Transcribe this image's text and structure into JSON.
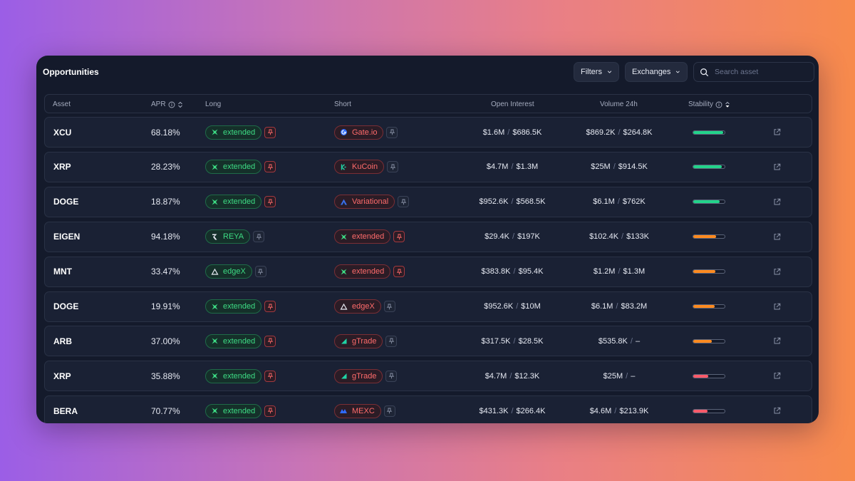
{
  "header": {
    "title": "Opportunities",
    "filters_label": "Filters",
    "exchanges_label": "Exchanges",
    "search_placeholder": "Search asset"
  },
  "columns": {
    "asset": "Asset",
    "apr": "APR",
    "long": "Long",
    "short": "Short",
    "open_interest": "Open Interest",
    "volume": "Volume 24h",
    "stability": "Stability"
  },
  "colors": {
    "long_green": "#3ddc84",
    "short_red": "#ff6b6b",
    "stability_high": "#22d38a",
    "stability_mid": "#ff8a1f",
    "stability_low": "#ff5a6a"
  },
  "rows": [
    {
      "asset": "XCU",
      "apr": "68.18%",
      "long": {
        "name": "extended",
        "icon": "extended-icon",
        "pinned": true
      },
      "short": {
        "name": "Gate.io",
        "icon": "gateio-icon",
        "pinned": false
      },
      "oi_long": "$1.6M",
      "oi_short": "$686.5K",
      "vol_long": "$869.2K",
      "vol_short": "$264.8K",
      "stability": 0.95,
      "stability_level": "high"
    },
    {
      "asset": "XRP",
      "apr": "28.23%",
      "long": {
        "name": "extended",
        "icon": "extended-icon",
        "pinned": true
      },
      "short": {
        "name": "KuCoin",
        "icon": "kucoin-icon",
        "pinned": false
      },
      "oi_long": "$4.7M",
      "oi_short": "$1.3M",
      "vol_long": "$25M",
      "vol_short": "$914.5K",
      "stability": 0.9,
      "stability_level": "high"
    },
    {
      "asset": "DOGE",
      "apr": "18.87%",
      "long": {
        "name": "extended",
        "icon": "extended-icon",
        "pinned": true
      },
      "short": {
        "name": "Variational",
        "icon": "variational-icon",
        "pinned": false
      },
      "oi_long": "$952.6K",
      "oi_short": "$568.5K",
      "vol_long": "$6.1M",
      "vol_short": "$762K",
      "stability": 0.85,
      "stability_level": "high"
    },
    {
      "asset": "EIGEN",
      "apr": "94.18%",
      "long": {
        "name": "REYA",
        "icon": "reya-icon",
        "pinned": false
      },
      "short": {
        "name": "extended",
        "icon": "extended-icon",
        "pinned": true
      },
      "oi_long": "$29.4K",
      "oi_short": "$197K",
      "vol_long": "$102.4K",
      "vol_short": "$133K",
      "stability": 0.72,
      "stability_level": "mid"
    },
    {
      "asset": "MNT",
      "apr": "33.47%",
      "long": {
        "name": "edgeX",
        "icon": "edgex-icon",
        "pinned": false
      },
      "short": {
        "name": "extended",
        "icon": "extended-icon",
        "pinned": true
      },
      "oi_long": "$383.8K",
      "oi_short": "$95.4K",
      "vol_long": "$1.2M",
      "vol_short": "$1.3M",
      "stability": 0.7,
      "stability_level": "mid"
    },
    {
      "asset": "DOGE",
      "apr": "19.91%",
      "long": {
        "name": "extended",
        "icon": "extended-icon",
        "pinned": true
      },
      "short": {
        "name": "edgeX",
        "icon": "edgex-icon",
        "pinned": false
      },
      "oi_long": "$952.6K",
      "oi_short": "$10M",
      "vol_long": "$6.1M",
      "vol_short": "$83.2M",
      "stability": 0.68,
      "stability_level": "mid"
    },
    {
      "asset": "ARB",
      "apr": "37.00%",
      "long": {
        "name": "extended",
        "icon": "extended-icon",
        "pinned": true
      },
      "short": {
        "name": "gTrade",
        "icon": "gtrade-icon",
        "pinned": false
      },
      "oi_long": "$317.5K",
      "oi_short": "$28.5K",
      "vol_long": "$535.8K",
      "vol_short": "–",
      "stability": 0.6,
      "stability_level": "mid"
    },
    {
      "asset": "XRP",
      "apr": "35.88%",
      "long": {
        "name": "extended",
        "icon": "extended-icon",
        "pinned": true
      },
      "short": {
        "name": "gTrade",
        "icon": "gtrade-icon",
        "pinned": false
      },
      "oi_long": "$4.7M",
      "oi_short": "$12.3K",
      "vol_long": "$25M",
      "vol_short": "–",
      "stability": 0.48,
      "stability_level": "low"
    },
    {
      "asset": "BERA",
      "apr": "70.77%",
      "long": {
        "name": "extended",
        "icon": "extended-icon",
        "pinned": true
      },
      "short": {
        "name": "MEXC",
        "icon": "mexc-icon",
        "pinned": false
      },
      "oi_long": "$431.3K",
      "oi_short": "$266.4K",
      "vol_long": "$4.6M",
      "vol_short": "$213.9K",
      "stability": 0.46,
      "stability_level": "low"
    }
  ]
}
